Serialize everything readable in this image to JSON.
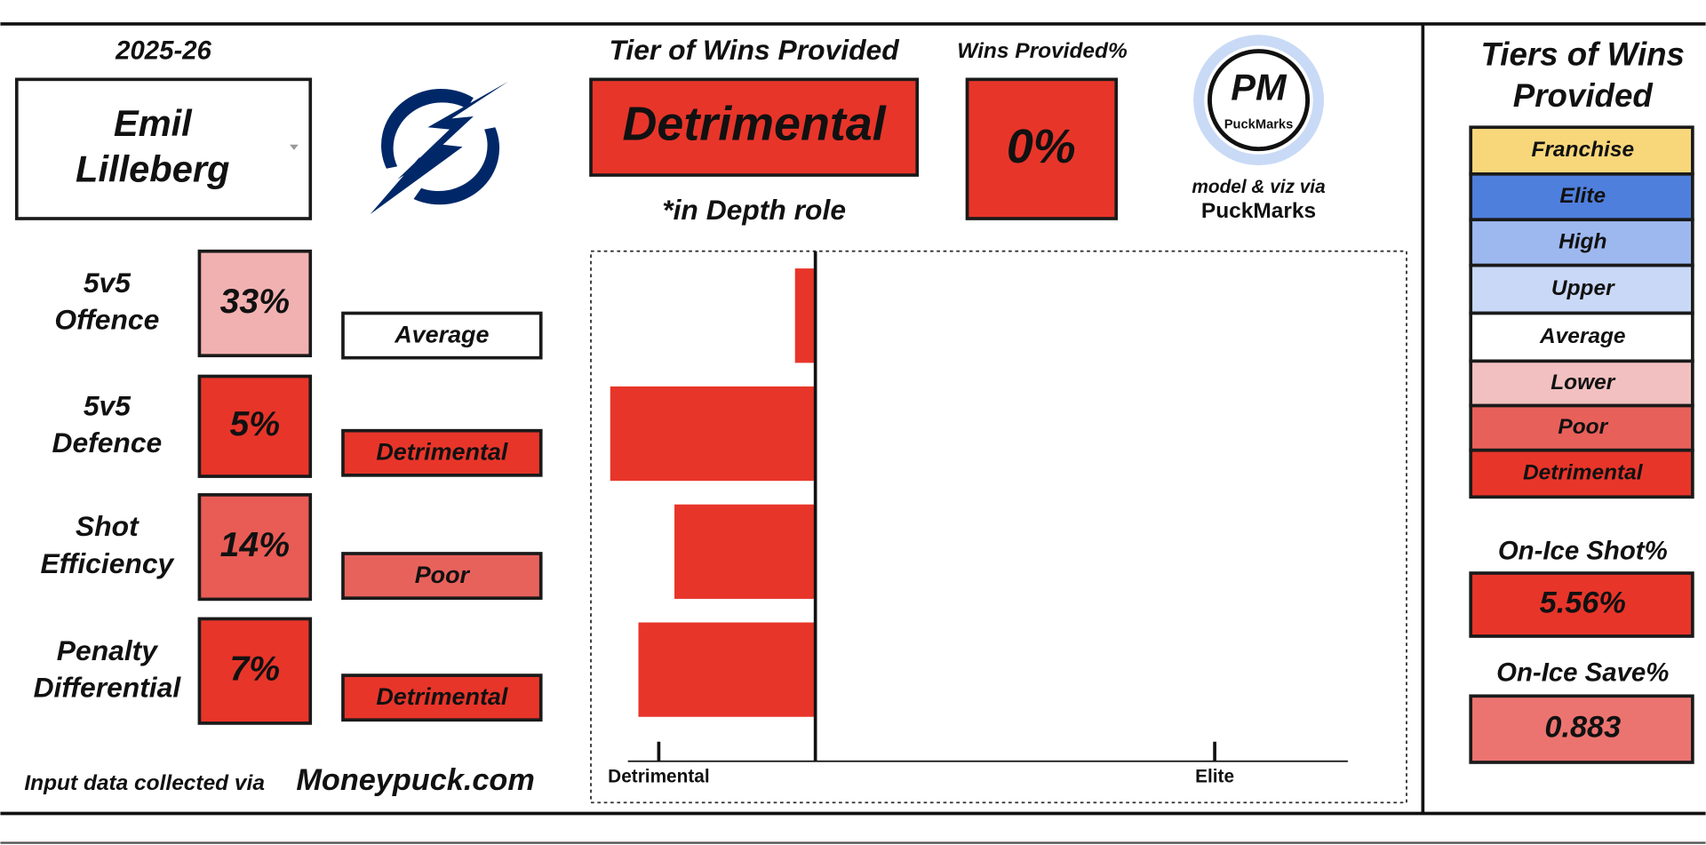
{
  "season": "2025-26",
  "player_name_lines": [
    "Emil",
    "Lilleberg"
  ],
  "tier_header": "Tier of Wins Provided",
  "tier": "Detrimental",
  "role_note": "*in Depth role",
  "wins_header": "Wins Provided%",
  "wins_value": "0%",
  "logo": {
    "initials": "PM",
    "name": "PuckMarks"
  },
  "credit_lines": [
    "model & viz via",
    "PuckMarks"
  ],
  "metrics": [
    {
      "label_lines": [
        "5v5",
        "Offence"
      ],
      "percent": "33%",
      "tier": "Average"
    },
    {
      "label_lines": [
        "5v5",
        "Defence"
      ],
      "percent": "5%",
      "tier": "Detrimental"
    },
    {
      "label_lines": [
        "Shot",
        "Efficiency"
      ],
      "percent": "14%",
      "tier": "Poor"
    },
    {
      "label_lines": [
        "Penalty",
        "Differential"
      ],
      "percent": "7%",
      "tier": "Detrimental"
    }
  ],
  "footer": {
    "prefix": "Input data collected via",
    "source": "Moneypuck.com"
  },
  "legend": {
    "title_lines": [
      "Tiers of Wins",
      "Provided"
    ],
    "tiers": [
      "Franchise",
      "Elite",
      "High",
      "Upper",
      "Average",
      "Lower",
      "Poor",
      "Detrimental"
    ]
  },
  "on_ice": [
    {
      "label": "On-Ice Shot%",
      "value": "5.56%"
    },
    {
      "label": "On-Ice Save%",
      "value": "0.883"
    }
  ],
  "chart_data": {
    "type": "bar",
    "orientation": "horizontal",
    "values": [
      -0.13,
      -1.31,
      -0.9,
      -1.13
    ],
    "color": "#e8352a",
    "xlim": [
      -1.35,
      3.4
    ],
    "xticks": [
      {
        "value": -1,
        "label": "Detrimental"
      },
      {
        "value": 2.55,
        "label": "Elite"
      }
    ]
  }
}
